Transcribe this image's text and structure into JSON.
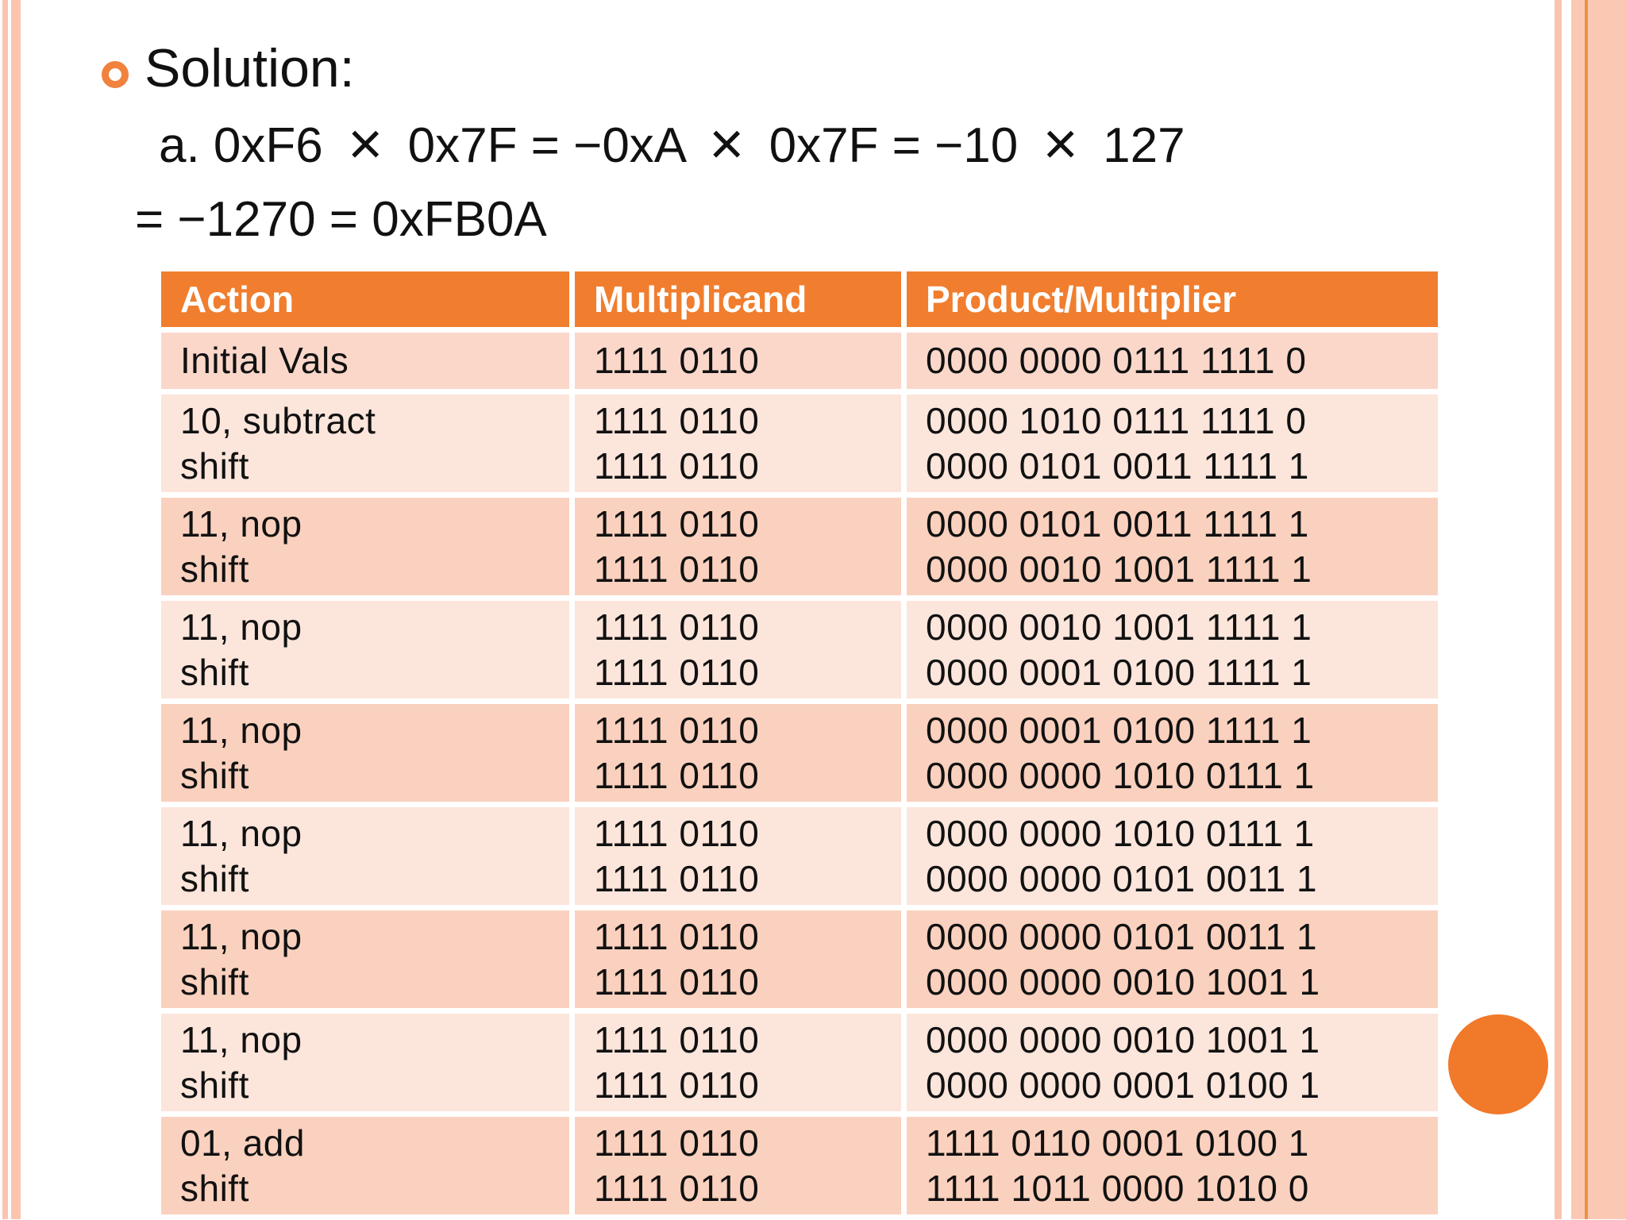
{
  "slide": {
    "bullet_title": "Solution:",
    "formula_line1": "a. 0xF6 × 0x7F = −0xA × 0x7F = −10 × 127",
    "formula_line2": "= −1270 = 0xFB0A"
  },
  "table": {
    "columns": [
      "Action",
      "Multiplicand",
      "Product/Multiplier"
    ],
    "rows": [
      {
        "action": [
          "Initial Vals"
        ],
        "multiplicand": [
          "1111 0110"
        ],
        "product": [
          "0000 0000 0111 1111 0"
        ]
      },
      {
        "action": [
          "10, subtract",
          "shift"
        ],
        "multiplicand": [
          "1111 0110",
          "1111 0110"
        ],
        "product": [
          "0000 1010 0111 1111 0",
          "0000 0101 0011 1111 1"
        ]
      },
      {
        "action": [
          "11, nop",
          "shift"
        ],
        "multiplicand": [
          "1111 0110",
          "1111 0110"
        ],
        "product": [
          "0000 0101 0011 1111 1",
          "0000 0010 1001 1111 1"
        ]
      },
      {
        "action": [
          "11, nop",
          "shift"
        ],
        "multiplicand": [
          "1111 0110",
          "1111 0110"
        ],
        "product": [
          "0000 0010 1001 1111 1",
          "0000 0001 0100 1111 1"
        ]
      },
      {
        "action": [
          "11, nop",
          "shift"
        ],
        "multiplicand": [
          "1111 0110",
          "1111 0110"
        ],
        "product": [
          "0000 0001 0100 1111 1",
          "0000 0000 1010 0111 1"
        ]
      },
      {
        "action": [
          "11, nop",
          "shift"
        ],
        "multiplicand": [
          "1111 0110",
          "1111 0110"
        ],
        "product": [
          "0000 0000 1010 0111 1",
          "0000 0000 0101 0011 1"
        ]
      },
      {
        "action": [
          "11, nop",
          "shift"
        ],
        "multiplicand": [
          "1111 0110",
          "1111 0110"
        ],
        "product": [
          "0000 0000 0101 0011 1",
          "0000 0000 0010 1001 1"
        ]
      },
      {
        "action": [
          "11, nop",
          "shift"
        ],
        "multiplicand": [
          "1111 0110",
          "1111 0110"
        ],
        "product": [
          "0000 0000 0010 1001 1",
          "0000 0000 0001 0100 1"
        ]
      },
      {
        "action": [
          "01, add",
          "shift"
        ],
        "multiplicand": [
          "1111 0110",
          "1111 0110"
        ],
        "product": [
          "1111 0110 0001 0100 1",
          "1111 1011 0000 1010 0"
        ]
      }
    ]
  },
  "colors": {
    "header_orange": "#f07e2e",
    "row_dark": "#fad1be",
    "row_light": "#fce5db",
    "row_first": "#fbd7ca",
    "frame_stripe": "#fac4af",
    "frame_accent_line": "#ec9145",
    "circle_orange": "#f1792a",
    "bullet_orange": "#f0823e",
    "text": "#111111"
  }
}
